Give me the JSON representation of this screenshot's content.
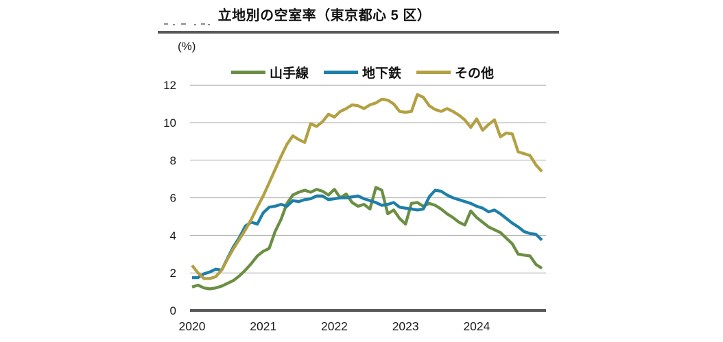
{
  "header": {
    "title": "立地別の空室率（東京都心 5 区）"
  },
  "colors": {
    "grid": "#a9a9a9",
    "axis": "#58595b",
    "text": "#1a1a1a",
    "rule": "#58595b"
  },
  "chart_data": {
    "type": "line",
    "title": "立地別の空室率（東京都心 5 区）",
    "unit_label": "(%)",
    "xlabel": "",
    "ylabel": "%",
    "ylim": [
      0,
      12
    ],
    "grid": "horizontal",
    "legend_position": "top",
    "y_ticks": [
      0,
      2,
      4,
      6,
      8,
      10,
      12
    ],
    "x_tick_labels": [
      "2020",
      "2021",
      "2022",
      "2023",
      "2024"
    ],
    "x_frequency": "monthly",
    "x_range": [
      "2020-01",
      "2024-12"
    ],
    "series": [
      {
        "key": "yamanote",
        "name": "山手線",
        "color": "#6b8e44",
        "values": [
          1.25,
          1.35,
          1.2,
          1.15,
          1.2,
          1.3,
          1.45,
          1.6,
          1.85,
          2.15,
          2.5,
          2.9,
          3.15,
          3.3,
          4.2,
          4.85,
          5.7,
          6.15,
          6.3,
          6.4,
          6.3,
          6.45,
          6.35,
          6.15,
          6.45,
          6.0,
          6.2,
          5.75,
          5.55,
          5.65,
          5.4,
          6.55,
          6.4,
          5.15,
          5.35,
          4.9,
          4.6,
          5.7,
          5.75,
          5.55,
          5.7,
          5.6,
          5.4,
          5.15,
          4.95,
          4.7,
          4.55,
          5.3,
          4.95,
          4.7,
          4.45,
          4.3,
          4.15,
          3.85,
          3.55,
          3.0,
          2.95,
          2.9,
          2.45,
          2.25
        ]
      },
      {
        "key": "chikatetsu",
        "name": "地下鉄",
        "color": "#1e7fa8",
        "values": [
          1.75,
          1.75,
          1.95,
          2.05,
          2.2,
          2.15,
          2.8,
          3.4,
          3.9,
          4.5,
          4.7,
          4.6,
          5.2,
          5.5,
          5.55,
          5.65,
          5.55,
          5.85,
          5.8,
          5.9,
          5.95,
          6.1,
          6.1,
          5.9,
          5.95,
          6.0,
          6.0,
          6.05,
          6.1,
          5.95,
          5.85,
          5.75,
          5.6,
          5.65,
          5.75,
          5.5,
          5.45,
          5.4,
          5.35,
          5.4,
          6.05,
          6.4,
          6.35,
          6.15,
          6.0,
          5.9,
          5.8,
          5.7,
          5.55,
          5.45,
          5.25,
          5.35,
          5.15,
          4.9,
          4.65,
          4.45,
          4.2,
          4.1,
          4.05,
          3.75
        ]
      },
      {
        "key": "sonota",
        "name": "その他",
        "color": "#b3a042",
        "values": [
          2.4,
          2.0,
          1.7,
          1.7,
          1.8,
          2.15,
          2.75,
          3.3,
          3.8,
          4.3,
          4.85,
          5.5,
          6.1,
          6.8,
          7.5,
          8.2,
          8.85,
          9.3,
          9.1,
          8.95,
          9.95,
          9.8,
          10.05,
          10.45,
          10.3,
          10.6,
          10.75,
          10.95,
          10.9,
          10.75,
          10.95,
          11.05,
          11.25,
          11.2,
          11.0,
          10.6,
          10.55,
          10.6,
          11.5,
          11.35,
          10.9,
          10.7,
          10.6,
          10.75,
          10.6,
          10.4,
          10.15,
          9.75,
          10.2,
          9.6,
          9.9,
          10.15,
          9.25,
          9.45,
          9.4,
          8.45,
          8.35,
          8.25,
          7.75,
          7.4
        ]
      }
    ]
  }
}
